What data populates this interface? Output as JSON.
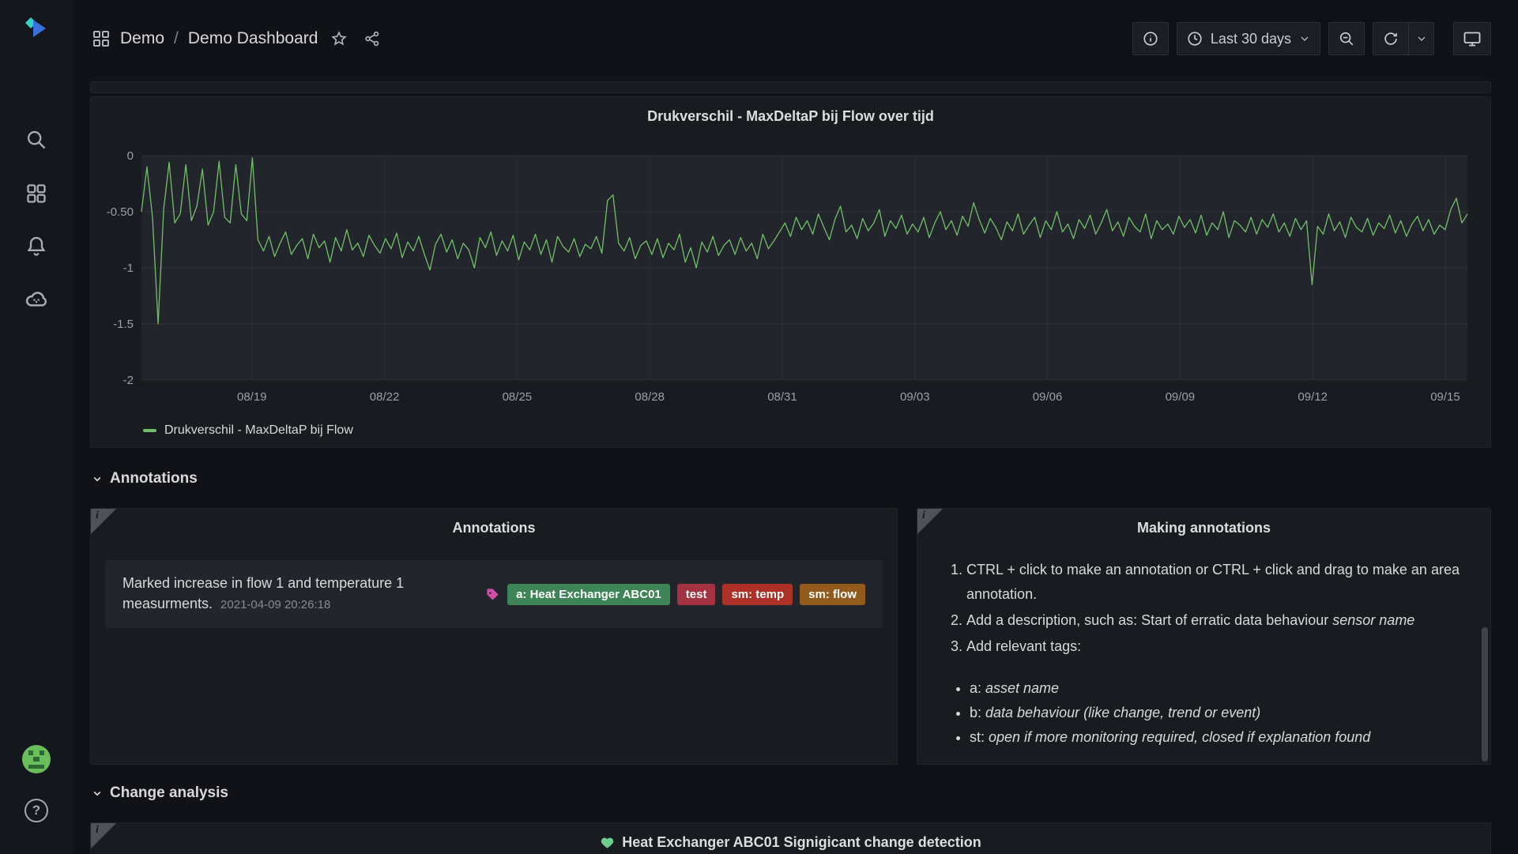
{
  "nav": {
    "breadcrumb_root": "Demo",
    "breadcrumb_sep": "/",
    "breadcrumb_current": "Demo Dashboard",
    "time_range": "Last 30 days"
  },
  "icons": {
    "help_glyph": "?"
  },
  "colors": {
    "series_green": "#73bf69",
    "heart_green": "#6fcf8f",
    "tag_icon_pink": "#cf4fa8"
  },
  "rows": {
    "annotations_label": "Annotations",
    "change_label": "Change analysis"
  },
  "panels": {
    "annotations": {
      "title": "Annotations",
      "items": [
        {
          "text": "Marked increase in flow 1 and temperature 1 measurments.",
          "timestamp": "2021-04-09 20:26:18",
          "tags": [
            {
              "label": "a: Heat Exchanger ABC01",
              "color": "#3d8456"
            },
            {
              "label": "test",
              "color": "#a53241"
            },
            {
              "label": "sm: temp",
              "color": "#ad3127"
            },
            {
              "label": "sm: flow",
              "color": "#925a1c"
            }
          ]
        }
      ]
    },
    "making_annotations": {
      "title": "Making annotations",
      "ordered": [
        {
          "segments": [
            {
              "t": "CTRL + click to make an annotation or CTRL + click and drag to make an area annotation."
            }
          ]
        },
        {
          "segments": [
            {
              "t": "Add a description, such as: Start of erratic data behaviour "
            },
            {
              "t": "sensor name",
              "i": true
            }
          ]
        },
        {
          "segments": [
            {
              "t": "Add relevant tags:"
            }
          ]
        }
      ],
      "bullets": [
        {
          "segments": [
            {
              "t": "a: "
            },
            {
              "t": "asset name",
              "i": true
            }
          ]
        },
        {
          "segments": [
            {
              "t": "b: "
            },
            {
              "t": "data behaviour (like change, trend or event)",
              "i": true
            }
          ]
        },
        {
          "segments": [
            {
              "t": "st: "
            },
            {
              "t": "open if more monitoring required, closed if explanation found",
              "i": true
            }
          ]
        }
      ]
    },
    "change_panel": {
      "title": "Heat Exchanger ABC01 Signigicant change detection"
    }
  },
  "chart_data": {
    "type": "line",
    "title": "Drukverschil - MaxDeltaP bij Flow over tijd",
    "xlabel": "",
    "ylabel": "",
    "ylim": [
      -2,
      0
    ],
    "grid": true,
    "legend_position": "bottom-left",
    "y_ticks": [
      {
        "label": "0",
        "v": 0
      },
      {
        "label": "-0.50",
        "v": -0.5
      },
      {
        "label": "-1",
        "v": -1
      },
      {
        "label": "-1.5",
        "v": -1.5
      },
      {
        "label": "-2",
        "v": -2
      }
    ],
    "x_ticks": [
      {
        "label": "08/19",
        "f": 0.0833
      },
      {
        "label": "08/22",
        "f": 0.1833
      },
      {
        "label": "08/25",
        "f": 0.2833
      },
      {
        "label": "08/28",
        "f": 0.3833
      },
      {
        "label": "08/31",
        "f": 0.4833
      },
      {
        "label": "09/03",
        "f": 0.5833
      },
      {
        "label": "09/06",
        "f": 0.6833
      },
      {
        "label": "09/09",
        "f": 0.7833
      },
      {
        "label": "09/12",
        "f": 0.8833
      },
      {
        "label": "09/15",
        "f": 0.9833
      }
    ],
    "series": [
      {
        "name": "Drukverschil - MaxDeltaP bij Flow",
        "color": "#73bf69",
        "values": [
          -0.5,
          -0.1,
          -0.55,
          -1.5,
          -0.48,
          -0.06,
          -0.6,
          -0.52,
          -0.08,
          -0.58,
          -0.45,
          -0.12,
          -0.62,
          -0.5,
          -0.05,
          -0.55,
          -0.6,
          -0.08,
          -0.52,
          -0.58,
          -0.02,
          -0.75,
          -0.85,
          -0.72,
          -0.9,
          -0.78,
          -0.68,
          -0.88,
          -0.8,
          -0.74,
          -0.92,
          -0.7,
          -0.82,
          -0.76,
          -0.95,
          -0.73,
          -0.85,
          -0.66,
          -0.84,
          -0.78,
          -0.9,
          -0.71,
          -0.8,
          -0.87,
          -0.74,
          -0.83,
          -0.69,
          -0.91,
          -0.77,
          -0.85,
          -0.72,
          -0.88,
          -1.02,
          -0.79,
          -0.7,
          -0.86,
          -0.75,
          -0.92,
          -0.78,
          -0.84,
          -1.0,
          -0.73,
          -0.82,
          -0.68,
          -0.89,
          -0.76,
          -0.85,
          -0.71,
          -0.93,
          -0.77,
          -0.84,
          -0.7,
          -0.88,
          -0.75,
          -0.95,
          -0.72,
          -0.81,
          -0.86,
          -0.74,
          -0.9,
          -0.79,
          -0.83,
          -0.72,
          -0.87,
          -0.4,
          -0.35,
          -0.78,
          -0.85,
          -0.73,
          -0.92,
          -0.8,
          -0.76,
          -0.88,
          -0.74,
          -0.91,
          -0.78,
          -0.84,
          -0.7,
          -0.95,
          -0.82,
          -1.0,
          -0.77,
          -0.86,
          -0.72,
          -0.89,
          -0.8,
          -0.75,
          -0.88,
          -0.73,
          -0.85,
          -0.78,
          -0.92,
          -0.7,
          -0.83,
          -0.76,
          -0.68,
          -0.6,
          -0.72,
          -0.55,
          -0.66,
          -0.58,
          -0.7,
          -0.52,
          -0.64,
          -0.75,
          -0.57,
          -0.45,
          -0.68,
          -0.62,
          -0.74,
          -0.56,
          -0.67,
          -0.6,
          -0.48,
          -0.72,
          -0.58,
          -0.65,
          -0.53,
          -0.7,
          -0.61,
          -0.68,
          -0.55,
          -0.73,
          -0.6,
          -0.5,
          -0.66,
          -0.58,
          -0.71,
          -0.54,
          -0.63,
          -0.42,
          -0.57,
          -0.69,
          -0.56,
          -0.64,
          -0.75,
          -0.59,
          -0.67,
          -0.52,
          -0.7,
          -0.62,
          -0.55,
          -0.73,
          -0.58,
          -0.66,
          -0.5,
          -0.68,
          -0.61,
          -0.74,
          -0.57,
          -0.65,
          -0.53,
          -0.7,
          -0.6,
          -0.48,
          -0.67,
          -0.59,
          -0.72,
          -0.55,
          -0.63,
          -0.68,
          -0.52,
          -0.74,
          -0.58,
          -0.66,
          -0.61,
          -0.7,
          -0.54,
          -0.64,
          -0.57,
          -0.69,
          -0.53,
          -0.71,
          -0.6,
          -0.66,
          -0.5,
          -0.73,
          -0.58,
          -0.62,
          -0.68,
          -0.55,
          -0.7,
          -0.57,
          -0.64,
          -0.52,
          -0.68,
          -0.6,
          -0.72,
          -0.56,
          -0.66,
          -0.58,
          -1.15,
          -0.63,
          -0.7,
          -0.52,
          -0.67,
          -0.59,
          -0.73,
          -0.55,
          -0.64,
          -0.68,
          -0.56,
          -0.71,
          -0.6,
          -0.65,
          -0.53,
          -0.69,
          -0.58,
          -0.72,
          -0.61,
          -0.54,
          -0.67,
          -0.57,
          -0.7,
          -0.62,
          -0.66,
          -0.48,
          -0.38,
          -0.6,
          -0.52
        ]
      }
    ]
  }
}
